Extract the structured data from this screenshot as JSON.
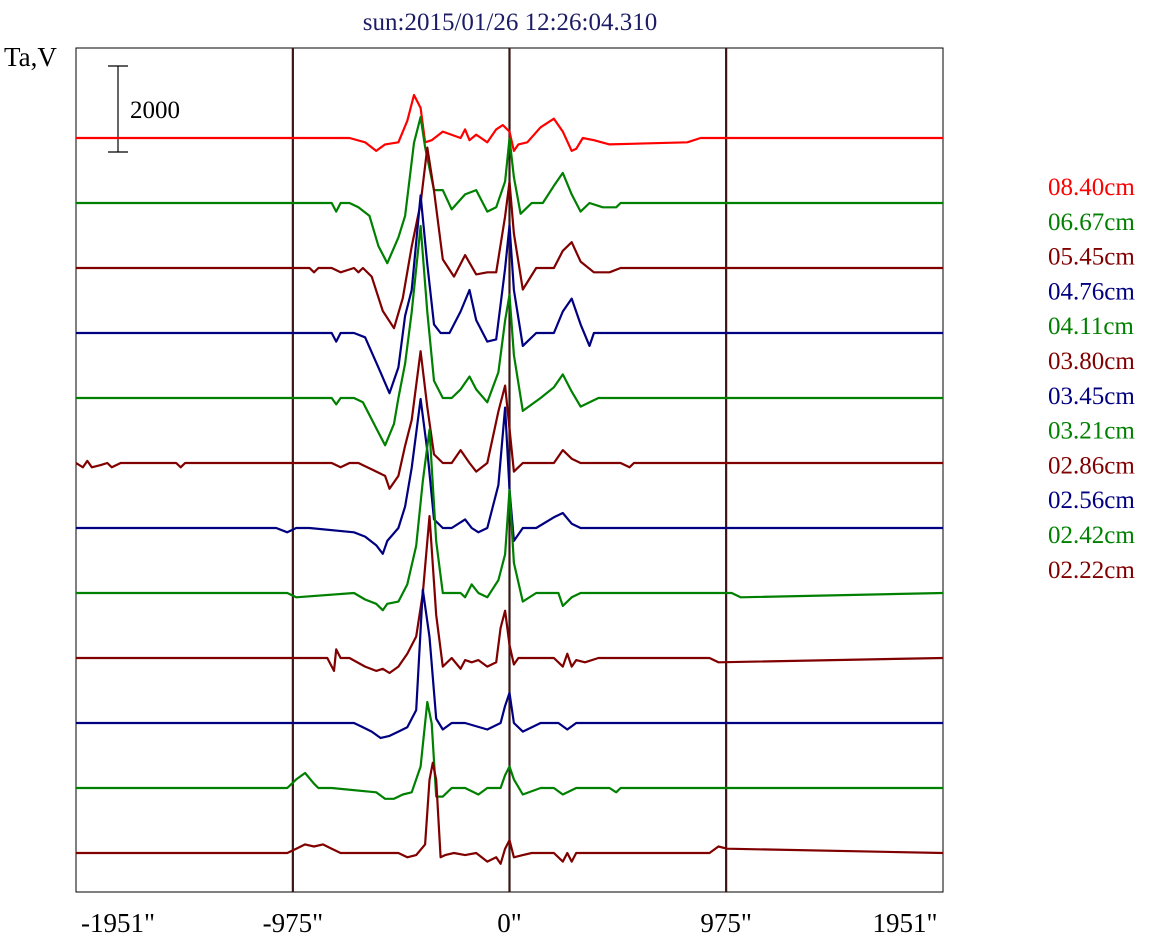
{
  "chart_data": {
    "type": "line",
    "title": "sun:2015/01/26 12:26:04.310",
    "ylabel": "Ta,V",
    "xlim": [
      -1951,
      1951
    ],
    "x_ticks": [
      {
        "value": -1951,
        "label": "-1951\""
      },
      {
        "value": -975,
        "label": "-975\""
      },
      {
        "value": 0,
        "label": "0\""
      },
      {
        "value": 975,
        "label": "975\""
      },
      {
        "value": 1951,
        "label": "1951\""
      }
    ],
    "vertical_lines": [
      -975,
      0,
      975
    ],
    "scale_bar": {
      "value": 2000,
      "label": "2000"
    },
    "grid": false,
    "legend_position": "right",
    "series": [
      {
        "name": "08.40cm",
        "color": "#ff0000",
        "x": [
          -1951,
          -1400,
          -720,
          -650,
          -600,
          -560,
          -500,
          -460,
          -430,
          -400,
          -380,
          -350,
          -300,
          -220,
          -200,
          -180,
          -150,
          -100,
          -60,
          -30,
          0,
          20,
          40,
          80,
          140,
          200,
          240,
          280,
          300,
          330,
          380,
          450,
          800,
          860,
          1951
        ],
        "y": [
          0,
          0,
          0,
          -100,
          -300,
          -150,
          -100,
          400,
          1000,
          700,
          -100,
          -50,
          150,
          0,
          200,
          -50,
          80,
          -100,
          200,
          300,
          150,
          -300,
          -150,
          -100,
          250,
          450,
          150,
          -300,
          -250,
          0,
          -50,
          -150,
          -100,
          0,
          0
        ]
      },
      {
        "name": "06.67cm",
        "color": "#008000",
        "x": [
          -1951,
          -800,
          -780,
          -760,
          -720,
          -680,
          -630,
          -590,
          -550,
          -500,
          -470,
          -430,
          -400,
          -380,
          -340,
          -300,
          -260,
          -200,
          -150,
          -100,
          -60,
          -20,
          0,
          20,
          50,
          100,
          150,
          200,
          240,
          280,
          320,
          360,
          420,
          480,
          500,
          1951
        ],
        "y": [
          0,
          0,
          -200,
          0,
          0,
          -100,
          -300,
          -1000,
          -1400,
          -800,
          -300,
          1400,
          2000,
          1300,
          300,
          300,
          -150,
          200,
          300,
          -200,
          -100,
          500,
          1500,
          600,
          -250,
          0,
          0,
          400,
          700,
          200,
          -200,
          0,
          -100,
          -100,
          0,
          0
        ]
      },
      {
        "name": "05.45cm",
        "color": "#800000",
        "x": [
          -1951,
          -900,
          -880,
          -860,
          -800,
          -760,
          -700,
          -680,
          -660,
          -620,
          -570,
          -520,
          -480,
          -440,
          -400,
          -370,
          -340,
          -300,
          -250,
          -200,
          -150,
          -100,
          -60,
          -20,
          0,
          20,
          60,
          120,
          200,
          240,
          280,
          320,
          380,
          450,
          500,
          1951
        ],
        "y": [
          0,
          0,
          -100,
          0,
          0,
          -100,
          0,
          -100,
          0,
          -200,
          -1000,
          -1400,
          -700,
          500,
          1500,
          2800,
          1800,
          200,
          -200,
          300,
          -150,
          -100,
          -100,
          1200,
          2000,
          800,
          -500,
          0,
          0,
          400,
          600,
          150,
          -100,
          -100,
          0,
          0
        ]
      },
      {
        "name": "04.76cm",
        "color": "#000080",
        "x": [
          -1951,
          -800,
          -780,
          -760,
          -700,
          -650,
          -590,
          -540,
          -500,
          -470,
          -440,
          -400,
          -370,
          -340,
          -310,
          -270,
          -220,
          -180,
          -150,
          -100,
          -60,
          -20,
          0,
          20,
          60,
          120,
          200,
          240,
          280,
          320,
          360,
          380,
          1951
        ],
        "y": [
          0,
          0,
          -200,
          0,
          0,
          -100,
          -800,
          -1400,
          -800,
          400,
          1000,
          3200,
          1600,
          200,
          0,
          0,
          500,
          1000,
          300,
          -200,
          -150,
          1500,
          2500,
          1000,
          -300,
          0,
          0,
          500,
          800,
          200,
          -300,
          0,
          0
        ]
      },
      {
        "name": "04.11cm",
        "color": "#008000",
        "x": [
          -1951,
          -800,
          -780,
          -760,
          -700,
          -660,
          -600,
          -560,
          -520,
          -500,
          -470,
          -440,
          -400,
          -370,
          -340,
          -300,
          -260,
          -220,
          -180,
          -150,
          -100,
          -50,
          -20,
          0,
          20,
          60,
          140,
          200,
          240,
          280,
          320,
          400,
          480,
          1951
        ],
        "y": [
          0,
          0,
          -150,
          0,
          0,
          -100,
          -700,
          -1100,
          -600,
          0,
          800,
          2000,
          4000,
          2000,
          400,
          0,
          0,
          200,
          500,
          200,
          -100,
          600,
          1800,
          2400,
          1000,
          -300,
          0,
          250,
          550,
          150,
          -200,
          0,
          0,
          0
        ]
      },
      {
        "name": "03.80cm",
        "color": "#800000",
        "x": [
          -1951,
          -1920,
          -1900,
          -1880,
          -1840,
          -1810,
          -1790,
          -1750,
          -1500,
          -1480,
          -1460,
          -1300,
          -1000,
          -800,
          -760,
          -720,
          -680,
          -620,
          -560,
          -540,
          -500,
          -470,
          -440,
          -400,
          -370,
          -340,
          -300,
          -260,
          -220,
          -180,
          -150,
          -100,
          -50,
          -20,
          0,
          20,
          60,
          120,
          200,
          240,
          280,
          320,
          400,
          500,
          540,
          560,
          1951
        ],
        "y": [
          0,
          -100,
          50,
          -100,
          -50,
          0,
          -100,
          0,
          0,
          -100,
          0,
          0,
          0,
          0,
          -100,
          0,
          0,
          -150,
          -300,
          -600,
          -300,
          400,
          1000,
          2600,
          1300,
          200,
          0,
          0,
          300,
          0,
          -200,
          0,
          1200,
          1800,
          800,
          -200,
          0,
          0,
          0,
          300,
          100,
          0,
          0,
          0,
          -100,
          0,
          0
        ]
      },
      {
        "name": "03.45cm",
        "color": "#000080",
        "x": [
          -1951,
          -1050,
          -1000,
          -960,
          -900,
          -700,
          -650,
          -600,
          -570,
          -550,
          -500,
          -470,
          -440,
          -400,
          -370,
          -340,
          -300,
          -260,
          -200,
          -170,
          -140,
          -100,
          -50,
          -20,
          0,
          20,
          60,
          120,
          200,
          240,
          280,
          320,
          400,
          1951
        ],
        "y": [
          0,
          0,
          -100,
          0,
          0,
          -100,
          -200,
          -400,
          -600,
          -300,
          0,
          500,
          1400,
          3000,
          1800,
          200,
          0,
          0,
          200,
          0,
          -100,
          0,
          1000,
          2800,
          900,
          -300,
          0,
          0,
          250,
          350,
          100,
          0,
          0,
          0
        ]
      },
      {
        "name": "03.21cm",
        "color": "#008000",
        "x": [
          -1951,
          -1000,
          -960,
          -700,
          -650,
          -600,
          -570,
          -550,
          -500,
          -460,
          -420,
          -390,
          -360,
          -330,
          -300,
          -260,
          -220,
          -200,
          -170,
          -140,
          -100,
          -50,
          -20,
          0,
          20,
          60,
          120,
          220,
          240,
          280,
          320,
          360,
          1000,
          1040,
          1951
        ],
        "y": [
          0,
          0,
          -100,
          0,
          -150,
          -250,
          -400,
          -250,
          -200,
          200,
          1100,
          2600,
          3800,
          1200,
          0,
          0,
          0,
          -100,
          200,
          0,
          -100,
          300,
          900,
          2400,
          700,
          -200,
          0,
          0,
          -300,
          -100,
          0,
          0,
          0,
          -100,
          0
        ]
      },
      {
        "name": "02.86cm",
        "color": "#800000",
        "x": [
          -1951,
          -820,
          -790,
          -780,
          -760,
          -720,
          -650,
          -600,
          -570,
          -540,
          -500,
          -460,
          -420,
          -390,
          -360,
          -330,
          -300,
          -260,
          -220,
          -200,
          -170,
          -140,
          -100,
          -60,
          -40,
          -20,
          0,
          20,
          40,
          80,
          200,
          240,
          260,
          280,
          300,
          340,
          400,
          900,
          940,
          1951
        ],
        "y": [
          0,
          0,
          -300,
          200,
          0,
          0,
          -200,
          -300,
          -250,
          -350,
          -200,
          100,
          500,
          1500,
          3300,
          1000,
          -200,
          0,
          -250,
          -50,
          -100,
          -50,
          -200,
          -100,
          700,
          1100,
          300,
          -150,
          0,
          0,
          0,
          -200,
          100,
          -200,
          -50,
          -100,
          0,
          0,
          -100,
          0
        ]
      },
      {
        "name": "02.56cm",
        "color": "#000080",
        "x": [
          -1951,
          -700,
          -660,
          -620,
          -580,
          -540,
          -500,
          -460,
          -420,
          -390,
          -360,
          -330,
          -300,
          -260,
          -200,
          -100,
          -40,
          -20,
          0,
          20,
          60,
          140,
          220,
          260,
          300,
          400,
          1951
        ],
        "y": [
          0,
          0,
          -100,
          -200,
          -350,
          -300,
          -200,
          -100,
          300,
          3100,
          2000,
          100,
          -150,
          0,
          0,
          -150,
          0,
          400,
          700,
          0,
          -200,
          0,
          0,
          -150,
          0,
          0,
          0
        ]
      },
      {
        "name": "02.42cm",
        "color": "#008000",
        "x": [
          -1951,
          -1000,
          -960,
          -920,
          -880,
          -860,
          -800,
          -600,
          -560,
          -520,
          -480,
          -440,
          -400,
          -370,
          -350,
          -330,
          -300,
          -260,
          -200,
          -140,
          -100,
          -40,
          -20,
          0,
          20,
          60,
          140,
          200,
          240,
          300,
          450,
          480,
          500,
          1951
        ],
        "y": [
          0,
          0,
          200,
          350,
          100,
          0,
          0,
          -100,
          -250,
          -250,
          -150,
          -100,
          500,
          2000,
          1500,
          -200,
          -200,
          0,
          0,
          -150,
          0,
          0,
          300,
          500,
          200,
          -150,
          0,
          0,
          -150,
          0,
          0,
          -100,
          0,
          0
        ]
      },
      {
        "name": "02.22cm",
        "color": "#800000",
        "x": [
          -1951,
          -1000,
          -960,
          -920,
          -880,
          -840,
          -800,
          -760,
          -700,
          -500,
          -460,
          -420,
          -380,
          -360,
          -345,
          -330,
          -310,
          -290,
          -250,
          -200,
          -150,
          -100,
          -60,
          -40,
          -20,
          0,
          20,
          60,
          100,
          140,
          200,
          240,
          260,
          280,
          300,
          360,
          900,
          940,
          980,
          1951
        ],
        "y": [
          0,
          0,
          100,
          200,
          150,
          200,
          100,
          0,
          0,
          0,
          -100,
          -50,
          200,
          1700,
          2100,
          1700,
          -100,
          -50,
          0,
          -50,
          0,
          -200,
          -100,
          -250,
          100,
          300,
          -100,
          -50,
          0,
          0,
          0,
          -200,
          0,
          -200,
          0,
          0,
          0,
          150,
          100,
          0
        ]
      }
    ]
  }
}
